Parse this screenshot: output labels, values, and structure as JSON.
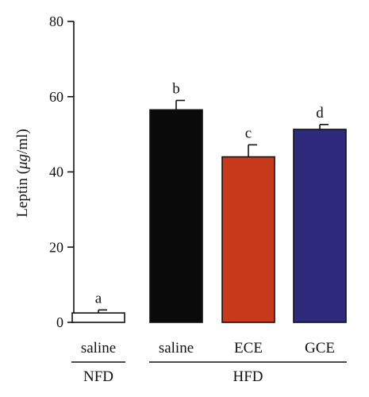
{
  "chart_data": {
    "type": "bar",
    "ylabel_prefix": "Leptin (",
    "ylabel_unit_italic": "μg",
    "ylabel_suffix": "/ml)",
    "ylim": [
      0,
      80
    ],
    "yticks": [
      0,
      20,
      40,
      60,
      80
    ],
    "categories": [
      "saline",
      "saline",
      "ECE",
      "GCE"
    ],
    "values": [
      2.5,
      56.5,
      44,
      51.3
    ],
    "errors": [
      0.8,
      2.5,
      3.2,
      1.3
    ],
    "significance": [
      "a",
      "b",
      "c",
      "d"
    ],
    "bar_colors": [
      "#ffffff",
      "#0a0a0a",
      "#c83a1c",
      "#2e2a7c"
    ],
    "groups": [
      {
        "label": "NFD",
        "span": [
          0,
          0
        ]
      },
      {
        "label": "HFD",
        "span": [
          1,
          3
        ]
      }
    ],
    "grid": false
  }
}
